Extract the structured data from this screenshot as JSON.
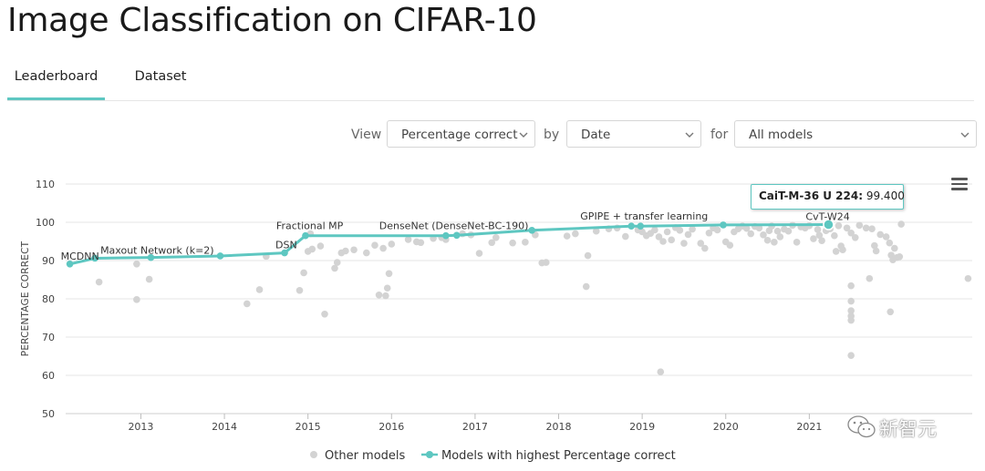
{
  "page": {
    "title": "Image Classification on CIFAR-10"
  },
  "tabs": [
    {
      "label": "Leaderboard",
      "active": true
    },
    {
      "label": "Dataset",
      "active": false
    }
  ],
  "controls": {
    "view_label": "View",
    "view_value": "Percentage correct",
    "by_label": "by",
    "by_value": "Date",
    "for_label": "for",
    "for_value": "All models"
  },
  "tooltip": {
    "model": "CaiT-M-36 U 224",
    "value": "99.400"
  },
  "watermark": {
    "text": "新智元"
  },
  "colors": {
    "accent": "#5ec7c1",
    "other": "#d3d3d3",
    "grid": "#e6e6e6"
  },
  "chart_data": {
    "type": "scatter",
    "title": "",
    "xlabel": "",
    "ylabel": "PERCENTAGE CORRECT",
    "xlim": [
      2012.1,
      2022.95
    ],
    "ylim": [
      50,
      110
    ],
    "yticks": [
      50,
      60,
      70,
      80,
      90,
      100,
      110
    ],
    "xticks": [
      2013,
      2014,
      2015,
      2016,
      2017,
      2018,
      2019,
      2020,
      2021
    ],
    "grid": true,
    "legend": {
      "position": "bottom",
      "entries": [
        "Other models",
        "Models with highest Percentage correct"
      ]
    },
    "series": [
      {
        "name": "Models with highest Percentage correct",
        "style": "line-markers",
        "points": [
          {
            "x": 2012.15,
            "y": 89.1,
            "label": "MCDNN"
          },
          {
            "x": 2012.45,
            "y": 90.6,
            "label": "Maxout Network (k=2)"
          },
          {
            "x": 2013.12,
            "y": 90.8,
            "label": ""
          },
          {
            "x": 2013.95,
            "y": 91.2,
            "label": ""
          },
          {
            "x": 2014.72,
            "y": 92.0,
            "label": "DSN"
          },
          {
            "x": 2014.97,
            "y": 96.5,
            "label": "Fractional MP"
          },
          {
            "x": 2016.65,
            "y": 96.5,
            "label": ""
          },
          {
            "x": 2016.78,
            "y": 96.6,
            "label": "DenseNet (DenseNet-BC-190)"
          },
          {
            "x": 2017.68,
            "y": 97.9,
            "label": ""
          },
          {
            "x": 2018.87,
            "y": 99.0,
            "label": ""
          },
          {
            "x": 2018.98,
            "y": 99.0,
            "label": "GPIPE + transfer learning"
          },
          {
            "x": 2019.97,
            "y": 99.3,
            "label": ""
          },
          {
            "x": 2021.23,
            "y": 99.4,
            "label": "CvT-W24"
          }
        ]
      },
      {
        "name": "Other models",
        "style": "scatter",
        "points": [
          [
            2012.5,
            84.4
          ],
          [
            2012.95,
            89.1
          ],
          [
            2012.95,
            79.8
          ],
          [
            2013.1,
            85.1
          ],
          [
            2014.27,
            78.7
          ],
          [
            2014.42,
            82.4
          ],
          [
            2014.5,
            91.1
          ],
          [
            2014.9,
            82.2
          ],
          [
            2014.95,
            86.8
          ],
          [
            2015.0,
            92.4
          ],
          [
            2015.05,
            93.0
          ],
          [
            2015.03,
            97.0
          ],
          [
            2015.15,
            93.8
          ],
          [
            2015.2,
            76.0
          ],
          [
            2015.32,
            88.0
          ],
          [
            2015.35,
            89.5
          ],
          [
            2015.4,
            92.0
          ],
          [
            2015.45,
            92.5
          ],
          [
            2015.55,
            92.8
          ],
          [
            2015.7,
            92.0
          ],
          [
            2015.8,
            94.0
          ],
          [
            2015.85,
            81.0
          ],
          [
            2015.9,
            93.2
          ],
          [
            2015.95,
            82.8
          ],
          [
            2015.93,
            80.8
          ],
          [
            2015.97,
            86.6
          ],
          [
            2016.0,
            94.3
          ],
          [
            2016.2,
            95.5
          ],
          [
            2016.3,
            94.9
          ],
          [
            2016.35,
            94.7
          ],
          [
            2016.5,
            95.8
          ],
          [
            2016.6,
            96.0
          ],
          [
            2016.65,
            95.5
          ],
          [
            2016.85,
            97.0
          ],
          [
            2016.95,
            96.7
          ],
          [
            2017.05,
            91.9
          ],
          [
            2017.2,
            94.7
          ],
          [
            2017.25,
            96.0
          ],
          [
            2017.45,
            94.6
          ],
          [
            2017.6,
            94.8
          ],
          [
            2017.72,
            96.7
          ],
          [
            2017.8,
            89.4
          ],
          [
            2017.85,
            89.5
          ],
          [
            2018.1,
            96.4
          ],
          [
            2018.2,
            97.0
          ],
          [
            2018.33,
            83.2
          ],
          [
            2018.35,
            91.3
          ],
          [
            2018.45,
            97.7
          ],
          [
            2018.6,
            98.3
          ],
          [
            2018.7,
            98.5
          ],
          [
            2018.8,
            96.3
          ],
          [
            2018.95,
            98.0
          ],
          [
            2019.0,
            97.5
          ],
          [
            2019.05,
            96.5
          ],
          [
            2019.1,
            97.1
          ],
          [
            2019.15,
            98.0
          ],
          [
            2019.2,
            96.2
          ],
          [
            2019.22,
            60.9
          ],
          [
            2019.25,
            95.0
          ],
          [
            2019.3,
            97.5
          ],
          [
            2019.35,
            95.4
          ],
          [
            2019.4,
            98.6
          ],
          [
            2019.45,
            97.9
          ],
          [
            2019.5,
            94.5
          ],
          [
            2019.55,
            96.8
          ],
          [
            2019.6,
            98.2
          ],
          [
            2019.7,
            94.5
          ],
          [
            2019.75,
            93.2
          ],
          [
            2019.8,
            97.2
          ],
          [
            2019.85,
            98.5
          ],
          [
            2019.9,
            98.0
          ],
          [
            2020.0,
            94.9
          ],
          [
            2020.05,
            94.0
          ],
          [
            2020.1,
            97.5
          ],
          [
            2020.15,
            98.3
          ],
          [
            2020.2,
            99.0
          ],
          [
            2020.25,
            98.4
          ],
          [
            2020.3,
            97.0
          ],
          [
            2020.35,
            98.9
          ],
          [
            2020.4,
            98.5
          ],
          [
            2020.45,
            96.7
          ],
          [
            2020.5,
            95.3
          ],
          [
            2020.52,
            97.8
          ],
          [
            2020.55,
            99.0
          ],
          [
            2020.58,
            94.8
          ],
          [
            2020.62,
            97.7
          ],
          [
            2020.65,
            96.2
          ],
          [
            2020.7,
            98.2
          ],
          [
            2020.75,
            97.7
          ],
          [
            2020.8,
            99.2
          ],
          [
            2020.85,
            94.8
          ],
          [
            2020.9,
            98.8
          ],
          [
            2020.95,
            98.5
          ],
          [
            2021.0,
            99.1
          ],
          [
            2021.05,
            95.7
          ],
          [
            2021.1,
            98.1
          ],
          [
            2021.12,
            96.6
          ],
          [
            2021.15,
            95.2
          ],
          [
            2021.2,
            97.8
          ],
          [
            2021.25,
            98.3
          ],
          [
            2021.3,
            96.5
          ],
          [
            2021.32,
            92.4
          ],
          [
            2021.35,
            99.1
          ],
          [
            2021.38,
            93.8
          ],
          [
            2021.4,
            92.8
          ],
          [
            2021.45,
            98.5
          ],
          [
            2021.5,
            97.2
          ],
          [
            2021.55,
            96.0
          ],
          [
            2021.6,
            99.2
          ],
          [
            2021.5,
            83.4
          ],
          [
            2021.5,
            79.4
          ],
          [
            2021.5,
            76.9
          ],
          [
            2021.5,
            75.5
          ],
          [
            2021.5,
            74.4
          ],
          [
            2021.5,
            65.2
          ],
          [
            2021.68,
            98.5
          ],
          [
            2021.75,
            98.3
          ],
          [
            2021.72,
            85.3
          ],
          [
            2021.78,
            93.9
          ],
          [
            2021.8,
            92.5
          ],
          [
            2021.85,
            96.8
          ],
          [
            2021.92,
            96.2
          ],
          [
            2021.96,
            94.6
          ],
          [
            2021.98,
            91.4
          ],
          [
            2022.0,
            90.2
          ],
          [
            2022.02,
            93.2
          ],
          [
            2022.05,
            90.8
          ],
          [
            2022.08,
            91.0
          ],
          [
            2021.97,
            76.6
          ],
          [
            2022.1,
            99.5
          ],
          [
            2022.9,
            85.3
          ]
        ]
      }
    ]
  }
}
